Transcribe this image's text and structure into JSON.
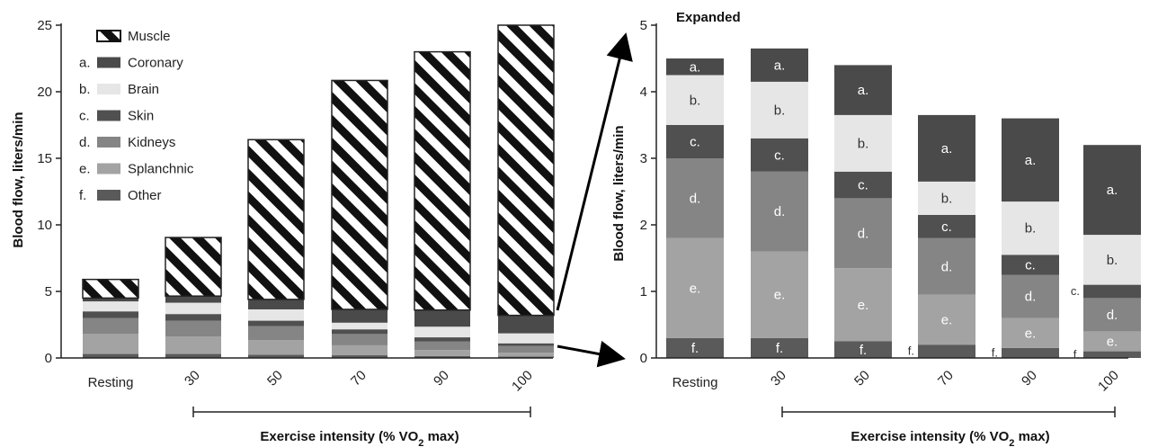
{
  "colors": {
    "muscle_stripe": "#111111",
    "coronary": "#4a4a4a",
    "brain": "#e6e6e6",
    "skin": "#505050",
    "kidneys": "#858585",
    "splanchnic": "#a3a3a3",
    "other": "#5a5a5a"
  },
  "chart_data": [
    {
      "type": "bar",
      "stacked": true,
      "title": "",
      "ylabel": "Blood flow, liters/min",
      "xlabel": "Exercise intensity (% VO2 max)",
      "xlabel_main": "Exercise intensity (% VO",
      "xlabel_sub": "2",
      "xlabel_end": " max)",
      "ylim": [
        0,
        25
      ],
      "yticks": [
        0,
        5,
        10,
        15,
        20,
        25
      ],
      "categories": [
        "Resting",
        "30",
        "50",
        "70",
        "90",
        "100"
      ],
      "legend": {
        "position": "top-left",
        "entries": [
          {
            "key": "muscle",
            "prefix": "",
            "name": "Muscle"
          },
          {
            "key": "coronary",
            "prefix": "a.",
            "name": "Coronary"
          },
          {
            "key": "brain",
            "prefix": "b.",
            "name": "Brain"
          },
          {
            "key": "skin",
            "prefix": "c.",
            "name": "Skin"
          },
          {
            "key": "kidneys",
            "prefix": "d.",
            "name": "Kidneys"
          },
          {
            "key": "splanchnic",
            "prefix": "e.",
            "name": "Splanchnic"
          },
          {
            "key": "other",
            "prefix": "f.",
            "name": "Other"
          }
        ]
      },
      "series": [
        {
          "key": "other",
          "values": [
            0.3,
            0.3,
            0.25,
            0.2,
            0.15,
            0.1
          ]
        },
        {
          "key": "splanchnic",
          "values": [
            1.5,
            1.3,
            1.1,
            0.75,
            0.45,
            0.3
          ]
        },
        {
          "key": "kidneys",
          "values": [
            1.2,
            1.2,
            1.05,
            0.85,
            0.65,
            0.5
          ]
        },
        {
          "key": "skin",
          "values": [
            0.5,
            0.5,
            0.4,
            0.35,
            0.3,
            0.2
          ]
        },
        {
          "key": "brain",
          "values": [
            0.75,
            0.85,
            0.85,
            0.5,
            0.8,
            0.75
          ]
        },
        {
          "key": "coronary",
          "values": [
            0.25,
            0.5,
            0.75,
            1.0,
            1.25,
            1.35
          ]
        },
        {
          "key": "muscle",
          "values": [
            1.4,
            4.4,
            12.0,
            17.2,
            19.4,
            21.8
          ]
        }
      ]
    },
    {
      "type": "bar",
      "stacked": true,
      "title": "Expanded",
      "ylabel": "Blood flow, liters/min",
      "xlabel": "Exercise intensity (% VO2 max)",
      "xlabel_main": "Exercise intensity (% VO",
      "xlabel_sub": "2",
      "xlabel_end": " max)",
      "ylim": [
        0,
        5
      ],
      "yticks": [
        0,
        1,
        2,
        3,
        4,
        5
      ],
      "categories": [
        "Resting",
        "30",
        "50",
        "70",
        "90",
        "100"
      ],
      "series": [
        {
          "key": "other",
          "label": "f.",
          "values": [
            0.3,
            0.3,
            0.25,
            0.2,
            0.15,
            0.1
          ]
        },
        {
          "key": "splanchnic",
          "label": "e.",
          "values": [
            1.5,
            1.3,
            1.1,
            0.75,
            0.45,
            0.3
          ]
        },
        {
          "key": "kidneys",
          "label": "d.",
          "values": [
            1.2,
            1.2,
            1.05,
            0.85,
            0.65,
            0.5
          ]
        },
        {
          "key": "skin",
          "label": "c.",
          "values": [
            0.5,
            0.5,
            0.4,
            0.35,
            0.3,
            0.2
          ]
        },
        {
          "key": "brain",
          "label": "b.",
          "values": [
            0.75,
            0.85,
            0.85,
            0.5,
            0.8,
            0.75
          ]
        },
        {
          "key": "coronary",
          "label": "a.",
          "values": [
            0.25,
            0.5,
            0.75,
            1.0,
            1.25,
            1.35
          ]
        }
      ]
    }
  ]
}
